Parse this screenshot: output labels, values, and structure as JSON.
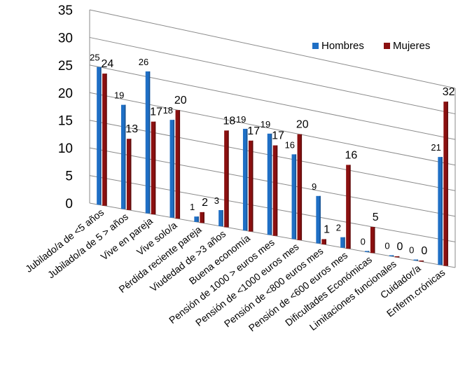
{
  "chart_data": {
    "type": "bar",
    "categories": [
      "Jubilado/a de <5 años",
      "Jubilado/a de 5 > años",
      "Vive en pareja",
      "Vive solo/a",
      "Pérdida reciente pareja",
      "Viudedad de >3 años",
      "Buena economía",
      "Pensión de 1000 > euros mes",
      "Pensión de <1000 euros mes",
      "Pensión de <800 euros mes",
      "Pensión de <600 euros mes",
      "Dificultades Económicas",
      "Limitaciones funcionales",
      "Cuidador/a",
      "Enferm.crónicas"
    ],
    "series": [
      {
        "name": "Hombres",
        "values": [
          25,
          19,
          26,
          18,
          1,
          3,
          19,
          19,
          16,
          9,
          2,
          0,
          0,
          0,
          21
        ]
      },
      {
        "name": "Mujeres",
        "values": [
          24,
          13,
          17,
          20,
          2,
          18,
          17,
          17,
          20,
          1,
          16,
          5,
          0,
          0,
          32
        ]
      }
    ],
    "y_ticks": [
      "0",
      "5",
      "10",
      "15",
      "20",
      "25",
      "30",
      "35"
    ],
    "ylim": [
      0,
      35
    ],
    "grid": true,
    "legend": "top-right",
    "colors": {
      "Hombres": "#1F6FC5",
      "Mujeres": "#8B1010"
    }
  }
}
